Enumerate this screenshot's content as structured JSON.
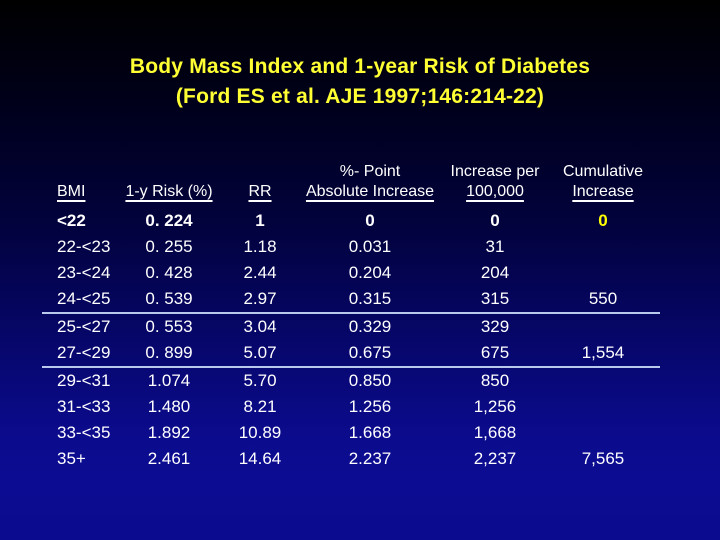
{
  "title": {
    "line1": "Body Mass Index and 1-year Risk of Diabetes",
    "line2": "(Ford ES et al. AJE 1997;146:214-22)"
  },
  "colors": {
    "background_top": "#000000",
    "background_bottom": "#0c0c92",
    "title_text": "#ffff33",
    "table_text": "#ffffff",
    "highlight_text": "#ffff00",
    "separator_line": "#b9c9ee"
  },
  "chart_data": {
    "type": "table",
    "columns": [
      {
        "top": "",
        "label": "BMI"
      },
      {
        "top": "",
        "label": "1-y Risk (%)"
      },
      {
        "top": "",
        "label": "RR"
      },
      {
        "top": "%- Point",
        "label": "Absolute Increase"
      },
      {
        "top": "Increase per",
        "label": "100,000"
      },
      {
        "top": "Cumulative",
        "label": "Increase"
      }
    ],
    "rows": [
      {
        "cells": [
          "<22",
          "0. 224",
          "1",
          "0",
          "0",
          "0"
        ],
        "bold": true,
        "highlight_last": true
      },
      {
        "cells": [
          "22-<23",
          "0. 255",
          "1.18",
          "0.031",
          "31",
          ""
        ]
      },
      {
        "cells": [
          "23-<24",
          "0. 428",
          "2.44",
          "0.204",
          "204",
          ""
        ]
      },
      {
        "cells": [
          "24-<25",
          "0. 539",
          "2.97",
          "0.315",
          "315",
          "550"
        ],
        "separator_below": true
      },
      {
        "cells": [
          "25-<27",
          "0. 553",
          "3.04",
          "0.329",
          "329",
          ""
        ]
      },
      {
        "cells": [
          "27-<29",
          "0. 899",
          "5.07",
          "0.675",
          "675",
          "1,554"
        ],
        "separator_below": true
      },
      {
        "cells": [
          "29-<31",
          "1.074",
          "5.70",
          "0.850",
          "850",
          ""
        ]
      },
      {
        "cells": [
          "31-<33",
          "1.480",
          "8.21",
          "1.256",
          "1,256",
          ""
        ]
      },
      {
        "cells": [
          "33-<35",
          "1.892",
          "10.89",
          "1.668",
          "1,668",
          ""
        ]
      },
      {
        "cells": [
          "35+",
          "2.461",
          "14.64",
          "2.237",
          "2,237",
          "7,565"
        ]
      }
    ]
  }
}
